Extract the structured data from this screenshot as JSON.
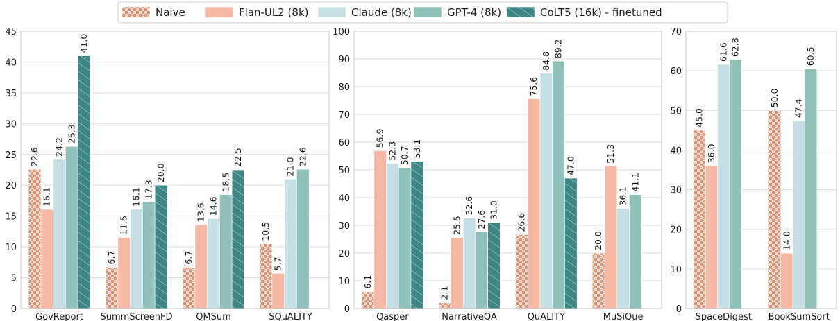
{
  "legend": {
    "entries": [
      {
        "name": "Naive",
        "color": "#d9967a",
        "pattern": "dots"
      },
      {
        "name": "Flan-UL2 (8k)",
        "color": "#f4b8a4",
        "pattern": "none"
      },
      {
        "name": "Claude (8k)",
        "color": "#c6dfe5",
        "pattern": "none"
      },
      {
        "name": "GPT-4 (8k)",
        "color": "#8fc1b8",
        "pattern": "none"
      },
      {
        "name": "CoLT5 (16k) - finetuned",
        "color": "#3e8686",
        "pattern": "hatch"
      }
    ]
  },
  "chart_data": [
    {
      "type": "bar",
      "categories": [
        "GovReport",
        "SummScreenFD",
        "QMSum",
        "SQuALITY"
      ],
      "ylim": [
        0,
        45
      ],
      "yticks": [
        0,
        5,
        10,
        15,
        20,
        25,
        30,
        35,
        40,
        45
      ],
      "grid": true,
      "series": [
        {
          "name": "Naive",
          "values": [
            22.6,
            6.7,
            6.7,
            10.5
          ],
          "labels": [
            "22.6",
            "6.7",
            "6.7",
            "10.5"
          ]
        },
        {
          "name": "Flan-UL2 (8k)",
          "values": [
            16.1,
            11.5,
            13.6,
            5.7
          ],
          "labels": [
            "16.1",
            "11.5",
            "13.6",
            "5.7"
          ]
        },
        {
          "name": "Claude (8k)",
          "values": [
            24.2,
            16.1,
            14.6,
            21.0
          ],
          "labels": [
            "24.2",
            "16.1",
            "14.6",
            "21.0"
          ]
        },
        {
          "name": "GPT-4 (8k)",
          "values": [
            26.3,
            17.3,
            18.5,
            22.6
          ],
          "labels": [
            "26.3",
            "17.3",
            "18.5",
            "22.6"
          ]
        },
        {
          "name": "CoLT5 (16k) - finetuned",
          "values": [
            41.0,
            20.0,
            22.5,
            null
          ],
          "labels": [
            "41.0",
            "20.0",
            "22.5",
            null
          ]
        }
      ]
    },
    {
      "type": "bar",
      "categories": [
        "Qasper",
        "NarrativeQA",
        "QuALITY",
        "MuSiQue"
      ],
      "ylim": [
        0,
        100
      ],
      "yticks": [
        0,
        10,
        20,
        30,
        40,
        50,
        60,
        70,
        80,
        90,
        100
      ],
      "grid": true,
      "series": [
        {
          "name": "Naive",
          "values": [
            6.1,
            2.1,
            26.6,
            20.0
          ],
          "labels": [
            "6.1",
            "2.1",
            "26.6",
            "20.0"
          ]
        },
        {
          "name": "Flan-UL2 (8k)",
          "values": [
            56.9,
            25.5,
            75.6,
            51.3
          ],
          "labels": [
            "56.9",
            "25.5",
            "75.6",
            "51.3"
          ]
        },
        {
          "name": "Claude (8k)",
          "values": [
            52.3,
            32.6,
            84.8,
            36.1
          ],
          "labels": [
            "52.3",
            "32.6",
            "84.8",
            "36.1"
          ]
        },
        {
          "name": "GPT-4 (8k)",
          "values": [
            50.7,
            27.6,
            89.2,
            41.1
          ],
          "labels": [
            "50.7",
            "27.6",
            "89.2",
            "41.1"
          ]
        },
        {
          "name": "CoLT5 (16k) - finetuned",
          "values": [
            53.1,
            31.0,
            47.0,
            null
          ],
          "labels": [
            "53.1",
            "31.0",
            "47.0",
            null
          ]
        }
      ]
    },
    {
      "type": "bar",
      "categories": [
        "SpaceDigest",
        "BookSumSort"
      ],
      "ylim": [
        0,
        70
      ],
      "yticks": [
        0,
        10,
        20,
        30,
        40,
        50,
        60,
        70
      ],
      "grid": true,
      "series": [
        {
          "name": "Naive",
          "values": [
            45.0,
            50.0
          ],
          "labels": [
            "45.0",
            "50.0"
          ]
        },
        {
          "name": "Flan-UL2 (8k)",
          "values": [
            36.0,
            14.0
          ],
          "labels": [
            "36.0",
            "14.0"
          ]
        },
        {
          "name": "Claude (8k)",
          "values": [
            61.6,
            47.4
          ],
          "labels": [
            "61.6",
            "47.4"
          ]
        },
        {
          "name": "GPT-4 (8k)",
          "values": [
            62.8,
            60.5
          ],
          "labels": [
            "62.8",
            "60.5"
          ]
        },
        {
          "name": "CoLT5 (16k) - finetuned",
          "values": [
            null,
            null
          ],
          "labels": [
            null,
            null
          ]
        }
      ]
    }
  ]
}
